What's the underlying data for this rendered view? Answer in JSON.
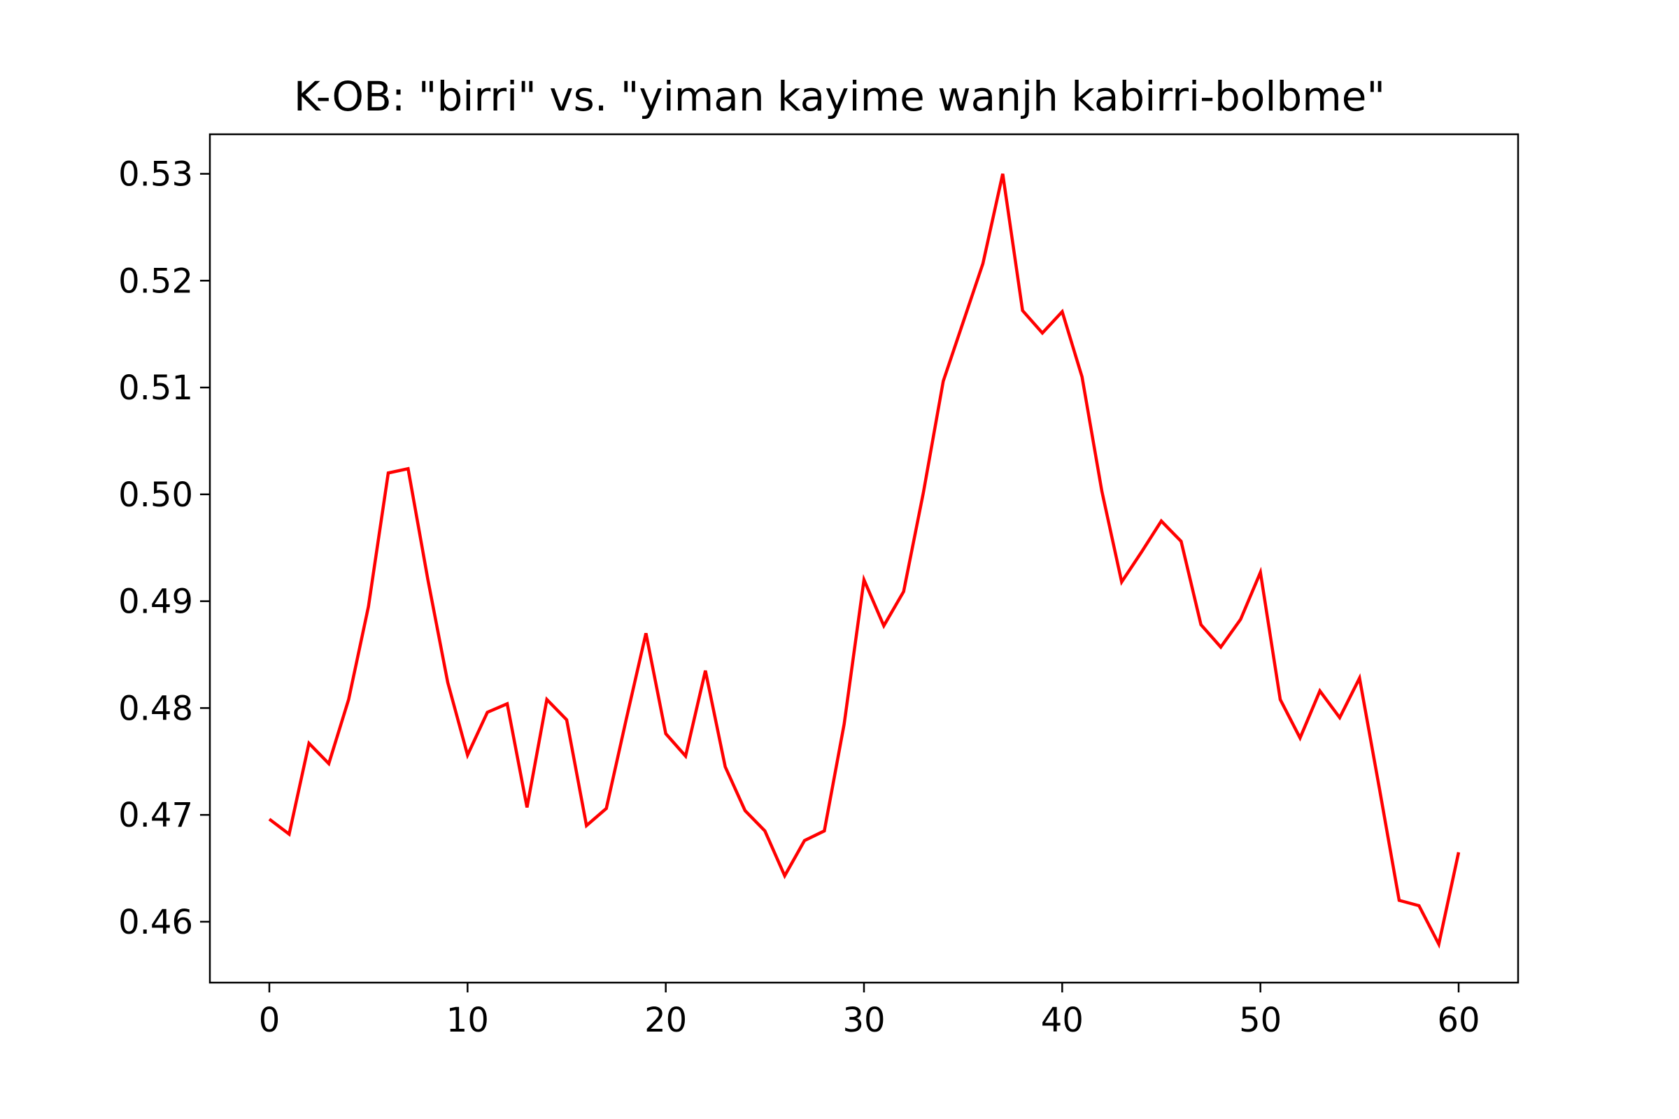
{
  "chart_data": {
    "type": "line",
    "title": "K-OB: \"birri\" vs. \"yiman kayime wanjh kabirri-bolbme\"",
    "xlabel": "",
    "ylabel": "",
    "xlim": [
      -3,
      63
    ],
    "ylim": [
      0.4543,
      0.5337
    ],
    "xticks": [
      0,
      10,
      20,
      30,
      40,
      50,
      60
    ],
    "xtick_labels": [
      "0",
      "10",
      "20",
      "30",
      "40",
      "50",
      "60"
    ],
    "yticks": [
      0.46,
      0.47,
      0.48,
      0.49,
      0.5,
      0.51,
      0.52,
      0.53
    ],
    "ytick_labels": [
      "0.46",
      "0.47",
      "0.48",
      "0.49",
      "0.50",
      "0.51",
      "0.52",
      "0.53"
    ],
    "grid": false,
    "series": [
      {
        "color": "#ff0000",
        "x": [
          0,
          1,
          2,
          3,
          4,
          5,
          6,
          7,
          8,
          9,
          10,
          11,
          12,
          13,
          14,
          15,
          16,
          17,
          18,
          19,
          20,
          21,
          22,
          23,
          24,
          25,
          26,
          27,
          28,
          29,
          30,
          31,
          32,
          33,
          34,
          35,
          36,
          37,
          38,
          39,
          40,
          41,
          42,
          43,
          44,
          45,
          46,
          47,
          48,
          49,
          50,
          51,
          52,
          53,
          54,
          55,
          56,
          57,
          58,
          59,
          60
        ],
        "values": [
          0.4696,
          0.4682,
          0.4767,
          0.4748,
          0.4808,
          0.4895,
          0.502,
          0.5024,
          0.492,
          0.4824,
          0.4756,
          0.4796,
          0.4804,
          0.4707,
          0.4808,
          0.4789,
          0.469,
          0.4706,
          0.4789,
          0.487,
          0.4776,
          0.4755,
          0.4835,
          0.4745,
          0.4704,
          0.4685,
          0.4643,
          0.4676,
          0.4685,
          0.4785,
          0.492,
          0.4877,
          0.4909,
          0.5002,
          0.5106,
          0.5161,
          0.5216,
          0.53,
          0.5172,
          0.5151,
          0.5171,
          0.511,
          0.5003,
          0.4918,
          0.4946,
          0.4975,
          0.4956,
          0.4878,
          0.4857,
          0.4883,
          0.4927,
          0.4808,
          0.4772,
          0.4816,
          0.4791,
          0.4828,
          0.4725,
          0.462,
          0.4615,
          0.4579,
          0.4665
        ]
      }
    ]
  }
}
